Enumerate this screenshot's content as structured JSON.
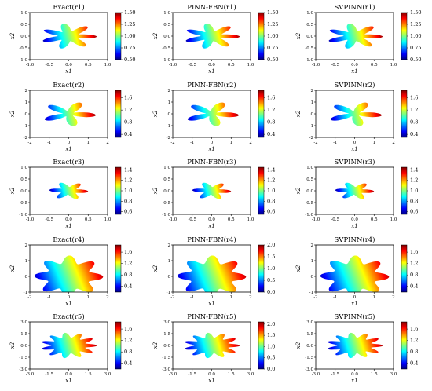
{
  "figure": {
    "columns": [
      "Exact",
      "PINN-FBN",
      "SVPINN"
    ],
    "rows": [
      "r1",
      "r2",
      "r3",
      "r4",
      "r5"
    ],
    "colormap": "jet",
    "colormap_stops": [
      "#00007f",
      "#0000ff",
      "#007fff",
      "#00ffff",
      "#7fff7f",
      "#ffff00",
      "#ff7f00",
      "#ff0000",
      "#7f0000"
    ]
  },
  "chart_data": [
    {
      "type": "heatmap",
      "title": "Exact(r1)",
      "subscript": "1",
      "xlabel": "x1",
      "ylabel": "x2",
      "xlim": [
        -1.0,
        1.0
      ],
      "ylim": [
        -1.0,
        1.0
      ],
      "xticks": [
        "-1.0",
        "-0.5",
        "0.0",
        "0.5",
        "1.0"
      ],
      "yticks": [
        "-1.0",
        "-0.5",
        "0.0",
        "0.5",
        "1.0"
      ],
      "colorbar_ticks": [
        "0.50",
        "0.75",
        "1.00",
        "1.25",
        "1.50"
      ],
      "clim": [
        0.5,
        1.5
      ],
      "shape": {
        "r": 0.5,
        "amp": 0.22,
        "lobes": 7,
        "rot": 0.3
      }
    },
    {
      "type": "heatmap",
      "title": "PINN-FBN(r1)",
      "subscript": "1",
      "xlabel": "x1",
      "ylabel": "x2",
      "xlim": [
        -1.0,
        1.0
      ],
      "ylim": [
        -1.0,
        1.0
      ],
      "xticks": [
        "-1.0",
        "-0.5",
        "0.0",
        "0.5",
        "1.0"
      ],
      "yticks": [
        "-1.0",
        "-0.5",
        "0.0",
        "0.5",
        "1.0"
      ],
      "colorbar_ticks": [
        "0.50",
        "0.75",
        "1.00",
        "1.25",
        "1.50"
      ],
      "clim": [
        0.5,
        1.5
      ],
      "shape": {
        "r": 0.5,
        "amp": 0.22,
        "lobes": 7,
        "rot": 0.3
      }
    },
    {
      "type": "heatmap",
      "title": "SVPINN(r1)",
      "subscript": "1",
      "xlabel": "x1",
      "ylabel": "x2",
      "xlim": [
        -1.0,
        1.0
      ],
      "ylim": [
        -1.0,
        1.0
      ],
      "xticks": [
        "-1.0",
        "-0.5",
        "0.0",
        "0.5",
        "1.0"
      ],
      "yticks": [
        "-1.0",
        "-0.5",
        "0.0",
        "0.5",
        "1.0"
      ],
      "colorbar_ticks": [
        "0.50",
        "0.75",
        "1.00",
        "1.25",
        "1.50"
      ],
      "clim": [
        0.5,
        1.5
      ],
      "shape": {
        "r": 0.5,
        "amp": 0.22,
        "lobes": 7,
        "rot": 0.3
      }
    },
    {
      "type": "heatmap",
      "title": "Exact(r2)",
      "subscript": "2",
      "xlabel": "x1",
      "ylabel": "x2",
      "xlim": [
        -2,
        2
      ],
      "ylim": [
        -2,
        2
      ],
      "xticks": [
        "-2",
        "-1",
        "0",
        "1",
        "2"
      ],
      "yticks": [
        "-2",
        "-1",
        "0",
        "1",
        "2"
      ],
      "colorbar_ticks": [
        "0.4",
        "0.8",
        "1.2",
        "1.6"
      ],
      "clim": [
        0.3,
        1.85
      ],
      "shape": {
        "r": 0.85,
        "amp": 0.55,
        "lobes": 5,
        "rot": 0.6
      }
    },
    {
      "type": "heatmap",
      "title": "PINN-FBN(r2)",
      "subscript": "2",
      "xlabel": "x1",
      "ylabel": "x2",
      "xlim": [
        -2,
        2
      ],
      "ylim": [
        -2,
        2
      ],
      "xticks": [
        "-2",
        "-1",
        "0",
        "1",
        "2"
      ],
      "yticks": [
        "-2",
        "-1",
        "0",
        "1",
        "2"
      ],
      "colorbar_ticks": [
        "0.4",
        "0.8",
        "1.2",
        "1.6"
      ],
      "clim": [
        0.3,
        1.85
      ],
      "shape": {
        "r": 0.85,
        "amp": 0.55,
        "lobes": 5,
        "rot": 0.6
      }
    },
    {
      "type": "heatmap",
      "title": "SVPINN(r2)",
      "subscript": "2",
      "xlabel": "x1",
      "ylabel": "x2",
      "xlim": [
        -2,
        2
      ],
      "ylim": [
        -2,
        2
      ],
      "xticks": [
        "-2",
        "-1",
        "0",
        "1",
        "2"
      ],
      "yticks": [
        "-2",
        "-1",
        "0",
        "1",
        "2"
      ],
      "colorbar_ticks": [
        "0.4",
        "0.8",
        "1.2",
        "1.6"
      ],
      "clim": [
        0.3,
        1.85
      ],
      "shape": {
        "r": 0.85,
        "amp": 0.55,
        "lobes": 5,
        "rot": 0.6
      }
    },
    {
      "type": "heatmap",
      "title": "Exact(r3)",
      "subscript": "3",
      "xlabel": "x1",
      "ylabel": "x2",
      "xlim": [
        -1.0,
        1.0
      ],
      "ylim": [
        -1.0,
        1.0
      ],
      "xticks": [
        "-1.0",
        "-0.5",
        "0.0",
        "0.5",
        "1.0"
      ],
      "yticks": [
        "-1.0",
        "-0.5",
        "0.0",
        "0.5",
        "1.0"
      ],
      "colorbar_ticks": [
        "0.6",
        "0.8",
        "1.0",
        "1.2",
        "1.4"
      ],
      "clim": [
        0.55,
        1.45
      ],
      "shape": {
        "r": 0.36,
        "amp": 0.14,
        "lobes": 6,
        "rot": 0.5
      }
    },
    {
      "type": "heatmap",
      "title": "PINN-FBN(r3)",
      "subscript": "3",
      "xlabel": "x1",
      "ylabel": "x2",
      "xlim": [
        -1.0,
        1.0
      ],
      "ylim": [
        -1.0,
        1.0
      ],
      "xticks": [
        "-1.0",
        "-0.5",
        "0.0",
        "0.5",
        "1.0"
      ],
      "yticks": [
        "-1.0",
        "-0.5",
        "0.0",
        "0.5",
        "1.0"
      ],
      "colorbar_ticks": [
        "0.6",
        "0.8",
        "1.0",
        "1.2",
        "1.4"
      ],
      "clim": [
        0.55,
        1.45
      ],
      "shape": {
        "r": 0.36,
        "amp": 0.14,
        "lobes": 6,
        "rot": 0.5
      }
    },
    {
      "type": "heatmap",
      "title": "SVPINN(r3)",
      "subscript": "3",
      "xlabel": "x1",
      "ylabel": "x2",
      "xlim": [
        -1.0,
        1.0
      ],
      "ylim": [
        -1.0,
        1.0
      ],
      "xticks": [
        "-1.0",
        "-0.5",
        "0.0",
        "0.5",
        "1.0"
      ],
      "yticks": [
        "-1.0",
        "-0.5",
        "0.0",
        "0.5",
        "1.0"
      ],
      "colorbar_ticks": [
        "0.6",
        "0.8",
        "1.0",
        "1.2",
        "1.4"
      ],
      "clim": [
        0.55,
        1.45
      ],
      "shape": {
        "r": 0.36,
        "amp": 0.14,
        "lobes": 6,
        "rot": 0.5
      }
    },
    {
      "type": "heatmap",
      "title": "Exact(r4)",
      "subscript": "4",
      "xlabel": "x1",
      "ylabel": "x2",
      "xlim": [
        -2,
        2
      ],
      "ylim": [
        -1,
        2
      ],
      "xticks": [
        "-2",
        "-1",
        "0",
        "1",
        "2"
      ],
      "yticks": [
        "-1",
        "0",
        "1",
        "2"
      ],
      "colorbar_ticks": [
        "0.4",
        "0.8",
        "1.2",
        "1.6"
      ],
      "clim": [
        0.2,
        1.85
      ],
      "shape": {
        "r": 1.45,
        "amp": 0.32,
        "lobes": 8,
        "rot": 0.2
      }
    },
    {
      "type": "heatmap",
      "title": "PINN-FBN(r4)",
      "subscript": "4",
      "xlabel": "x1",
      "ylabel": "x2",
      "xlim": [
        -2,
        2
      ],
      "ylim": [
        -1,
        2
      ],
      "xticks": [
        "-2",
        "-1",
        "0",
        "1",
        "2"
      ],
      "yticks": [
        "-1",
        "0",
        "1",
        "2"
      ],
      "colorbar_ticks": [
        "0.0",
        "0.5",
        "1.0",
        "1.5",
        "2.0"
      ],
      "clim": [
        0.0,
        2.0
      ],
      "shape": {
        "r": 1.45,
        "amp": 0.32,
        "lobes": 8,
        "rot": 0.2
      }
    },
    {
      "type": "heatmap",
      "title": "SVPINN(r4)",
      "subscript": "4",
      "xlabel": "x1",
      "ylabel": "x2",
      "xlim": [
        -2,
        2
      ],
      "ylim": [
        -1,
        2
      ],
      "xticks": [
        "-2",
        "-1",
        "0",
        "1",
        "2"
      ],
      "yticks": [
        "-1",
        "0",
        "1",
        "2"
      ],
      "colorbar_ticks": [
        "0.4",
        "0.8",
        "1.2",
        "1.6"
      ],
      "clim": [
        0.2,
        1.85
      ],
      "shape": {
        "r": 1.45,
        "amp": 0.32,
        "lobes": 8,
        "rot": 0.2
      }
    },
    {
      "type": "heatmap",
      "title": "Exact(r5)",
      "subscript": "5",
      "xlabel": "x1",
      "ylabel": "x2",
      "xlim": [
        -3.0,
        3.0
      ],
      "ylim": [
        -3.0,
        3.0
      ],
      "xticks": [
        "-3.0",
        "-1.5",
        "0.0",
        "1.5",
        "3.0"
      ],
      "yticks": [
        "-3.0",
        "-1.5",
        "0.0",
        "1.5",
        "3.0"
      ],
      "colorbar_ticks": [
        "0.4",
        "0.8",
        "1.2",
        "1.6"
      ],
      "clim": [
        0.2,
        1.85
      ],
      "shape": {
        "r": 1.75,
        "amp": 0.42,
        "lobes": 11,
        "rot": 0.1
      }
    },
    {
      "type": "heatmap",
      "title": "PINN-FBN(r5)",
      "subscript": "5",
      "xlabel": "x1",
      "ylabel": "x2",
      "xlim": [
        -3.0,
        3.0
      ],
      "ylim": [
        -3.0,
        3.0
      ],
      "xticks": [
        "-3.0",
        "-1.5",
        "0.0",
        "1.5",
        "3.0"
      ],
      "yticks": [
        "-3.0",
        "-1.5",
        "0.0",
        "1.5",
        "3.0"
      ],
      "colorbar_ticks": [
        "0.0",
        "0.5",
        "1.0",
        "1.5",
        "2.0"
      ],
      "clim": [
        0.0,
        2.1
      ],
      "shape": {
        "r": 1.75,
        "amp": 0.42,
        "lobes": 11,
        "rot": 0.1
      }
    },
    {
      "type": "heatmap",
      "title": "SVPINN(r5)",
      "subscript": "5",
      "xlabel": "x1",
      "ylabel": "x2",
      "xlim": [
        -3.0,
        3.0
      ],
      "ylim": [
        -3.0,
        3.0
      ],
      "xticks": [
        "-3.0",
        "-1.5",
        "0.0",
        "1.5",
        "3.0"
      ],
      "yticks": [
        "-3.0",
        "-1.5",
        "0.0",
        "1.5",
        "3.0"
      ],
      "colorbar_ticks": [
        "0.4",
        "0.8",
        "1.2",
        "1.6"
      ],
      "clim": [
        0.2,
        1.85
      ],
      "shape": {
        "r": 1.75,
        "amp": 0.42,
        "lobes": 11,
        "rot": 0.1
      }
    }
  ]
}
